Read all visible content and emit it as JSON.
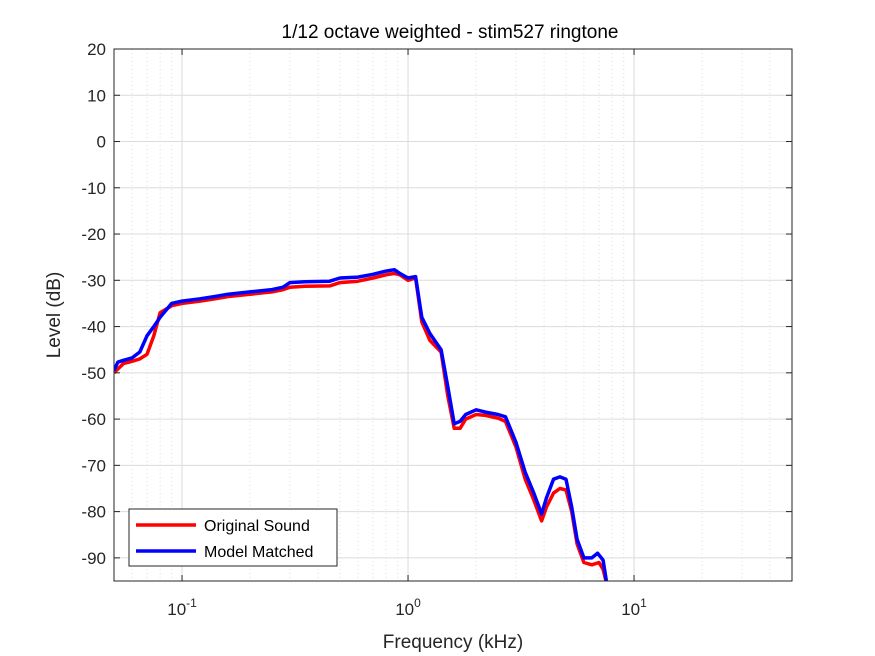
{
  "chart_data": {
    "type": "line",
    "title": "1/12 octave weighted - stim527 ringtone",
    "xlabel": "Frequency (kHz)",
    "ylabel": "Level (dB)",
    "xscale": "log",
    "xlim": [
      0.05,
      50
    ],
    "ylim": [
      -95,
      20
    ],
    "grid": true,
    "legend_position": "bottom-left",
    "x_ticks": [
      {
        "value": 0.1,
        "base": "10",
        "exp": "-1"
      },
      {
        "value": 1,
        "base": "10",
        "exp": "0"
      },
      {
        "value": 10,
        "base": "10",
        "exp": "1"
      }
    ],
    "y_ticks": [
      20,
      10,
      0,
      -10,
      -20,
      -30,
      -40,
      -50,
      -60,
      -70,
      -80,
      -90
    ],
    "series": [
      {
        "name": "Original Sound",
        "color": "#ff0000",
        "x": [
          0.05,
          0.055,
          0.06,
          0.065,
          0.07,
          0.075,
          0.08,
          0.09,
          0.1,
          0.12,
          0.14,
          0.16,
          0.2,
          0.25,
          0.28,
          0.3,
          0.35,
          0.45,
          0.5,
          0.6,
          0.7,
          0.8,
          0.87,
          0.92,
          1.0,
          1.08,
          1.15,
          1.25,
          1.4,
          1.5,
          1.6,
          1.7,
          1.8,
          2.0,
          2.2,
          2.5,
          2.7,
          3.0,
          3.3,
          3.6,
          3.9,
          4.1,
          4.4,
          4.7,
          5.0,
          5.3,
          5.6,
          6.0,
          6.5,
          7.0,
          7.3,
          7.6
        ],
        "y": [
          -50,
          -48,
          -47.5,
          -47,
          -46,
          -42,
          -37,
          -35.5,
          -35,
          -34.5,
          -34,
          -33.5,
          -33,
          -32.5,
          -32,
          -31.5,
          -31.3,
          -31.2,
          -30.5,
          -30.2,
          -29.5,
          -28.8,
          -28.5,
          -28.8,
          -30,
          -29.5,
          -39,
          -43,
          -45.5,
          -55,
          -62,
          -62,
          -60,
          -59,
          -59.2,
          -59.8,
          -60.5,
          -66,
          -73,
          -77.5,
          -82,
          -79,
          -76,
          -75,
          -75.3,
          -80,
          -87,
          -91,
          -91.5,
          -91,
          -92.5,
          -96
        ]
      },
      {
        "name": "Model Matched",
        "color": "#0000ff",
        "x": [
          0.05,
          0.052,
          0.055,
          0.06,
          0.065,
          0.07,
          0.075,
          0.08,
          0.09,
          0.1,
          0.12,
          0.14,
          0.16,
          0.2,
          0.25,
          0.28,
          0.3,
          0.35,
          0.45,
          0.5,
          0.6,
          0.7,
          0.8,
          0.87,
          0.92,
          1.0,
          1.08,
          1.15,
          1.25,
          1.4,
          1.5,
          1.6,
          1.7,
          1.8,
          2.0,
          2.2,
          2.5,
          2.7,
          3.0,
          3.3,
          3.6,
          3.9,
          4.1,
          4.4,
          4.7,
          5.0,
          5.3,
          5.6,
          6.0,
          6.5,
          6.9,
          7.3,
          7.6
        ],
        "y": [
          -49.5,
          -47.7,
          -47.3,
          -46.8,
          -45.5,
          -42,
          -40,
          -38,
          -35,
          -34.5,
          -34,
          -33.5,
          -33,
          -32.5,
          -32,
          -31.5,
          -30.5,
          -30.3,
          -30.2,
          -29.5,
          -29.3,
          -28.7,
          -28,
          -27.7,
          -28.5,
          -29.5,
          -29.2,
          -38,
          -41.5,
          -45,
          -53,
          -61,
          -60.5,
          -59,
          -58,
          -58.5,
          -59,
          -59.5,
          -65,
          -71.5,
          -76,
          -80.5,
          -77,
          -73,
          -72.5,
          -73,
          -79,
          -86,
          -90,
          -90,
          -89,
          -90.5,
          -96
        ]
      }
    ]
  }
}
